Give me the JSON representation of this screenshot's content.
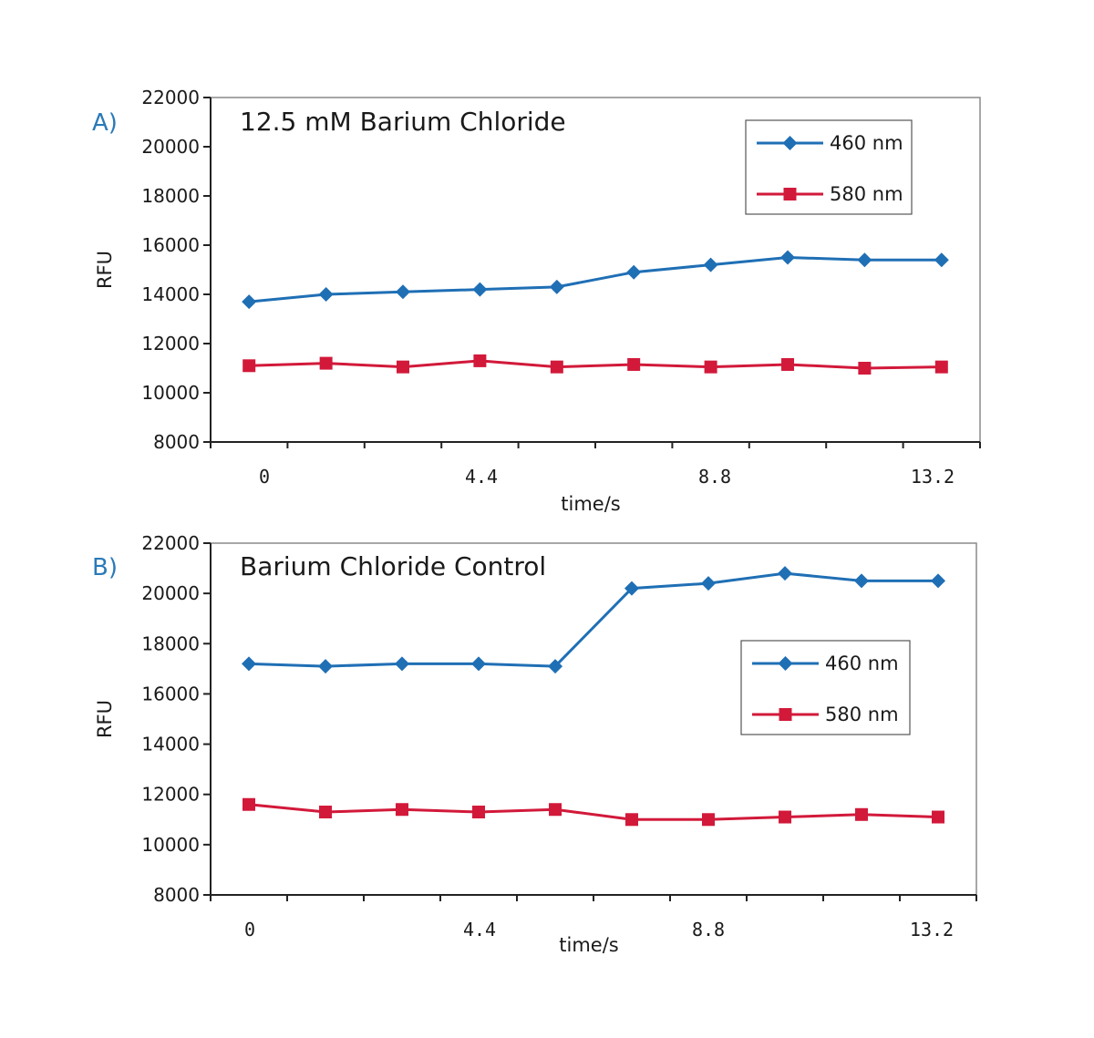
{
  "chart_data": [
    {
      "type": "line",
      "panel": "A)",
      "title": "12.5 mM Barium Chloride",
      "xlabel": "time/s",
      "ylabel": "RFU",
      "ylim": [
        8000,
        22000
      ],
      "yticks": [
        8000,
        10000,
        12000,
        14000,
        16000,
        18000,
        20000,
        22000
      ],
      "xticks": [
        "0",
        "4.4",
        "8.8",
        "13.2"
      ],
      "legend": "top-right",
      "x": [
        0,
        1.467,
        2.933,
        4.4,
        5.867,
        7.333,
        8.8,
        10.267,
        11.733,
        13.2
      ],
      "series": [
        {
          "name": "460 nm",
          "color": "#1f6fb5",
          "marker": "diamond",
          "values": [
            13700,
            14000,
            14100,
            14200,
            14300,
            14900,
            15200,
            15500,
            15400,
            15400
          ]
        },
        {
          "name": "580 nm",
          "color": "#d2193a",
          "marker": "square",
          "values": [
            11100,
            11200,
            11050,
            11300,
            11050,
            11150,
            11050,
            11150,
            11000,
            11050
          ]
        }
      ]
    },
    {
      "type": "line",
      "panel": "B)",
      "title": "Barium Chloride Control",
      "xlabel": "time/s",
      "ylabel": "RFU",
      "ylim": [
        8000,
        22000
      ],
      "yticks": [
        8000,
        10000,
        12000,
        14000,
        16000,
        18000,
        20000,
        22000
      ],
      "xticks": [
        "0",
        "4.4",
        "8.8",
        "13.2"
      ],
      "legend": "center-right",
      "x": [
        0,
        1.467,
        2.933,
        4.4,
        5.867,
        7.333,
        8.8,
        10.267,
        11.733,
        13.2
      ],
      "series": [
        {
          "name": "460 nm",
          "color": "#1f6fb5",
          "marker": "diamond",
          "values": [
            17200,
            17100,
            17200,
            17200,
            17100,
            20200,
            20400,
            20800,
            20500,
            20500
          ]
        },
        {
          "name": "580 nm",
          "color": "#d2193a",
          "marker": "square",
          "values": [
            11600,
            11300,
            11400,
            11300,
            11400,
            11000,
            11000,
            11100,
            11200,
            11100
          ]
        }
      ]
    }
  ]
}
